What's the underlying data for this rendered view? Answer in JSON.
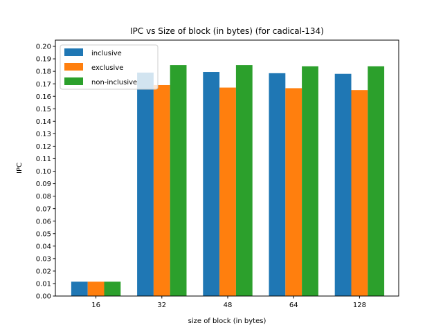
{
  "chart_data": {
    "type": "bar",
    "title": "IPC vs Size of block (in bytes) (for cadical-134)",
    "xlabel": "size of block (in bytes)",
    "ylabel": "IPC",
    "categories": [
      "16",
      "32",
      "48",
      "64",
      "128"
    ],
    "series": [
      {
        "name": "inclusive",
        "color": "#1f77b4",
        "values": [
          0.0115,
          0.179,
          0.1795,
          0.1785,
          0.178
        ]
      },
      {
        "name": "exclusive",
        "color": "#ff7f0e",
        "values": [
          0.0115,
          0.169,
          0.167,
          0.1665,
          0.165
        ]
      },
      {
        "name": "non-inclusive",
        "color": "#2ca02c",
        "values": [
          0.0115,
          0.185,
          0.185,
          0.184,
          0.184
        ]
      }
    ],
    "ylim": [
      0,
      0.205
    ],
    "yticks": [
      "0.00",
      "0.01",
      "0.02",
      "0.03",
      "0.04",
      "0.05",
      "0.06",
      "0.07",
      "0.08",
      "0.09",
      "0.10",
      "0.11",
      "0.12",
      "0.13",
      "0.14",
      "0.15",
      "0.16",
      "0.17",
      "0.18",
      "0.19",
      "0.20"
    ],
    "legend_position": "top-left",
    "grid": false
  }
}
